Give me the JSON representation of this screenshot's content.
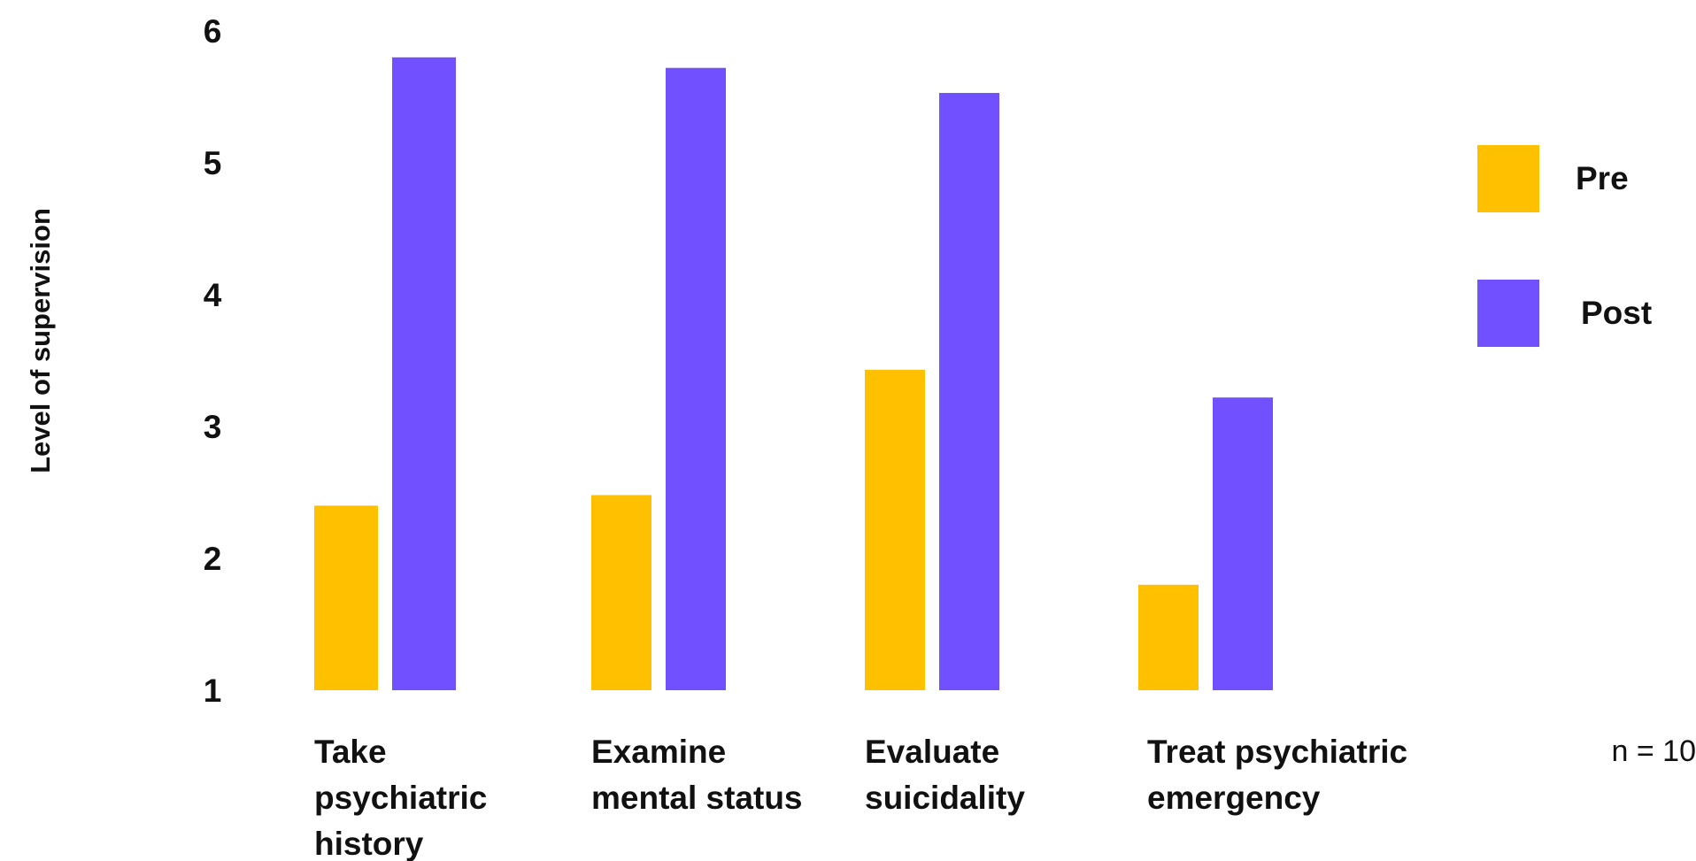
{
  "chart_data": {
    "type": "bar",
    "title": "",
    "xlabel": "",
    "ylabel": "Level of supervision",
    "ylim": [
      1,
      6
    ],
    "yticks": [
      "1",
      "2",
      "3",
      "4",
      "5",
      "6"
    ],
    "categories": [
      [
        "Take",
        "psychiatric",
        "history"
      ],
      [
        "Examine",
        "mental status"
      ],
      [
        "Evaluate",
        "suicidality"
      ],
      [
        "Treat psychiatric",
        "emergency"
      ]
    ],
    "series": [
      {
        "name": "Pre",
        "color": "#FFC000",
        "values": [
          2.4,
          2.48,
          3.43,
          1.8
        ]
      },
      {
        "name": "Post",
        "color": "#7050FF",
        "values": [
          5.8,
          5.72,
          5.53,
          3.22
        ]
      }
    ],
    "grid": false,
    "legend_position": "right",
    "note": "n = 10"
  }
}
